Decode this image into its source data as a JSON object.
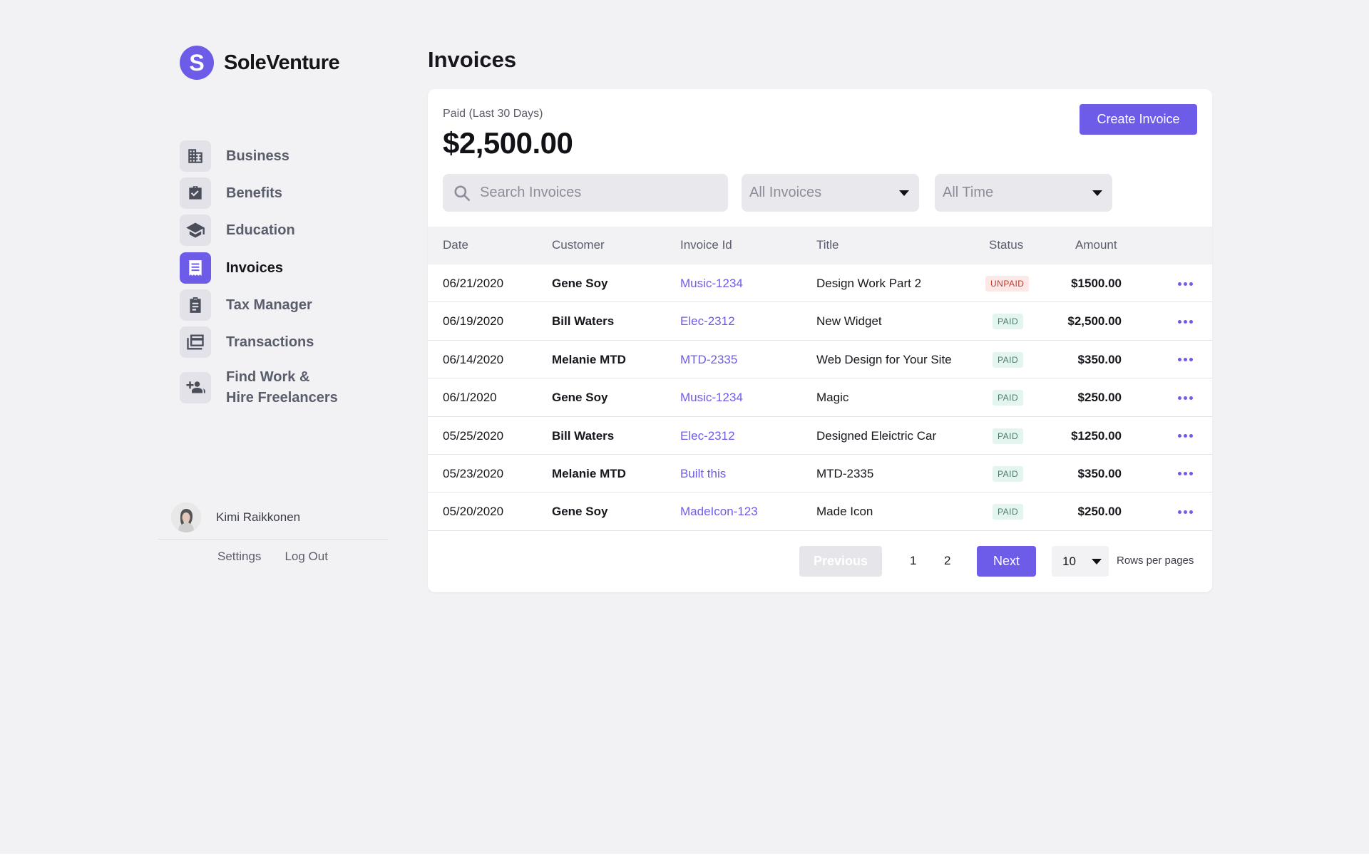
{
  "brand": {
    "name": "SoleVenture",
    "logo_letter": "S"
  },
  "sidebar": {
    "items": [
      {
        "label": "Business",
        "icon": "building-icon",
        "active": false
      },
      {
        "label": "Benefits",
        "icon": "briefcase-check-icon",
        "active": false
      },
      {
        "label": "Education",
        "icon": "graduation-cap-icon",
        "active": false
      },
      {
        "label": "Invoices",
        "icon": "receipt-icon",
        "active": true
      },
      {
        "label": "Tax Manager",
        "icon": "clipboard-icon",
        "active": false
      },
      {
        "label": "Transactions",
        "icon": "cards-icon",
        "active": false
      },
      {
        "label": "Find Work &",
        "label2": "Hire Freelancers",
        "icon": "add-people-icon",
        "active": false
      }
    ]
  },
  "user": {
    "name": "Kimi Raikkonen",
    "settings_label": "Settings",
    "logout_label": "Log Out"
  },
  "page": {
    "title": "Invoices"
  },
  "summary": {
    "label": "Paid (Last 30 Days)",
    "amount": "$2,500.00"
  },
  "actions": {
    "create_label": "Create Invoice"
  },
  "filters": {
    "search_placeholder": "Search Invoices",
    "type_value": "All Invoices",
    "time_value": "All Time"
  },
  "table": {
    "columns": [
      "Date",
      "Customer",
      "Invoice Id",
      "Title",
      "Status",
      "Amount"
    ],
    "rows": [
      {
        "date": "06/21/2020",
        "customer": "Gene Soy",
        "invoice_id": "Music-1234",
        "title": "Design Work Part 2",
        "status": "UNPAID",
        "amount": "$1500.00"
      },
      {
        "date": "06/19/2020",
        "customer": "Bill Waters",
        "invoice_id": "Elec-2312",
        "title": "New Widget",
        "status": "PAID",
        "amount": "$2,500.00"
      },
      {
        "date": "06/14/2020",
        "customer": "Melanie MTD",
        "invoice_id": "MTD-2335",
        "title": "Web Design for Your Site",
        "status": "PAID",
        "amount": "$350.00"
      },
      {
        "date": "06/1/2020",
        "customer": "Gene Soy",
        "invoice_id": "Music-1234",
        "title": "Magic",
        "status": "PAID",
        "amount": "$250.00"
      },
      {
        "date": "05/25/2020",
        "customer": "Bill Waters",
        "invoice_id": "Elec-2312",
        "title": "Designed Eleictric Car",
        "status": "PAID",
        "amount": "$1250.00"
      },
      {
        "date": "05/23/2020",
        "customer": "Melanie MTD",
        "invoice_id": "Built this",
        "title": "MTD-2335",
        "status": "PAID",
        "amount": "$350.00"
      },
      {
        "date": "05/20/2020",
        "customer": "Gene Soy",
        "invoice_id": "MadeIcon-123",
        "title": "Made Icon",
        "status": "PAID",
        "amount": "$250.00"
      }
    ]
  },
  "pagination": {
    "previous_label": "Previous",
    "pages": [
      "1",
      "2"
    ],
    "next_label": "Next",
    "rows_per_page": "10",
    "rows_label": "Rows per pages"
  },
  "colors": {
    "accent": "#6c5ce7",
    "background": "#f2f2f4",
    "paid_bg": "#e4f4ee",
    "unpaid_bg": "#fde8e8"
  }
}
